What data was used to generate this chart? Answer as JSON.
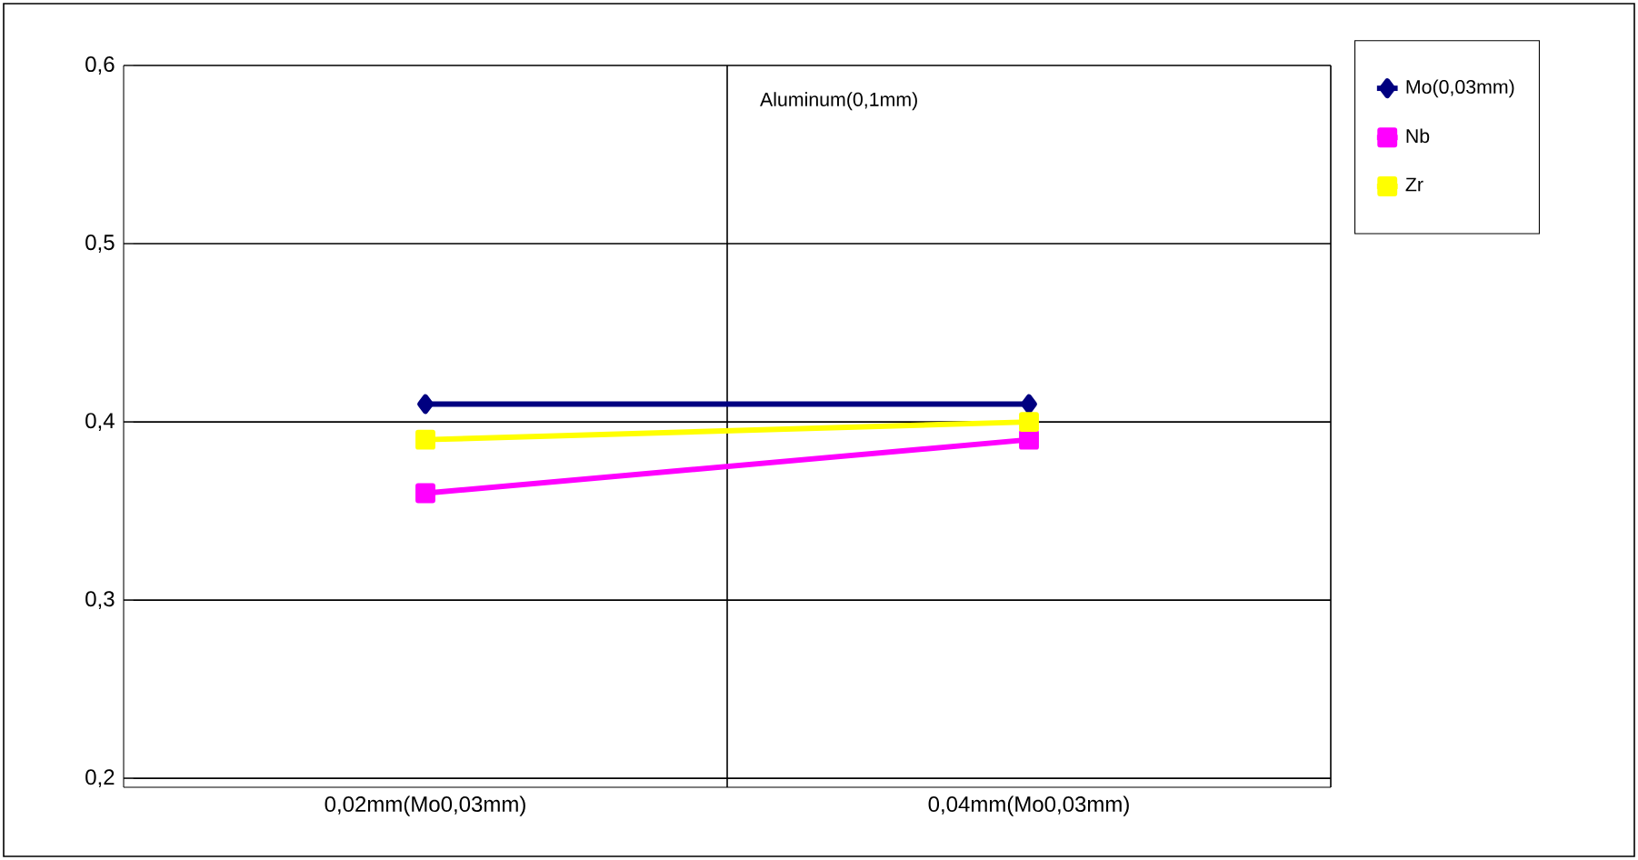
{
  "chart_data": {
    "type": "line",
    "categories": [
      "0,02mm(Mo0,03mm)",
      "0,04mm(Mo0,03mm)"
    ],
    "series": [
      {
        "name": "Mo(0,03mm)",
        "color": "#000080",
        "values": [
          0.41,
          0.41
        ],
        "marker": "diamond"
      },
      {
        "name": "Nb",
        "color": "#ff00ff",
        "values": [
          0.36,
          0.39
        ],
        "marker": "square"
      },
      {
        "name": "Zr",
        "color": "#ffff00",
        "values": [
          0.39,
          0.4
        ],
        "marker": "square"
      }
    ],
    "ylim": [
      0.195,
      0.6
    ],
    "yticks": [
      {
        "value": 0.2,
        "label": "0,2"
      },
      {
        "value": 0.3,
        "label": "0,3"
      },
      {
        "value": 0.4,
        "label": "0,4"
      },
      {
        "value": 0.5,
        "label": "0,5"
      },
      {
        "value": 0.6,
        "label": "0,6"
      }
    ],
    "grid": true,
    "legend": "right",
    "line_style": "solid",
    "annotations": [
      "Aluminum(0,1mm)"
    ]
  }
}
